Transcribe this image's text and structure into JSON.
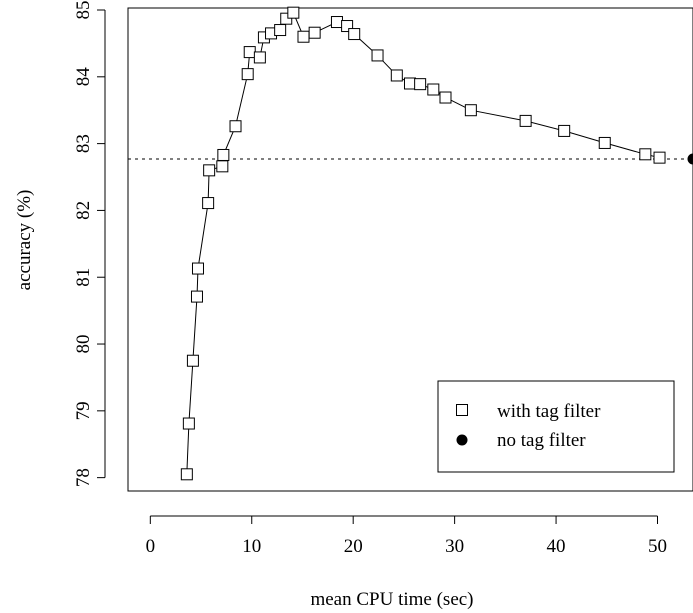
{
  "chart_data": {
    "type": "scatter",
    "xlabel": "mean CPU time (sec)",
    "ylabel": "accuracy (%)",
    "xlim": [
      -2.2,
      53.5
    ],
    "ylim": [
      77.8,
      85.03
    ],
    "x_ticks": [
      0,
      10,
      20,
      30,
      40,
      50
    ],
    "y_ticks": [
      78,
      79,
      80,
      81,
      82,
      83,
      84,
      85
    ],
    "legend_position": "bottom-right",
    "grid": false,
    "series": [
      {
        "name": "with tag filter",
        "marker": "open-square",
        "line": true,
        "points": [
          [
            3.6,
            78.05
          ],
          [
            3.8,
            78.81
          ],
          [
            4.2,
            79.75
          ],
          [
            4.6,
            80.71
          ],
          [
            4.7,
            81.13
          ],
          [
            5.7,
            82.11
          ],
          [
            5.8,
            82.6
          ],
          [
            7.1,
            82.66
          ],
          [
            7.2,
            82.83
          ],
          [
            8.4,
            83.26
          ],
          [
            9.6,
            84.04
          ],
          [
            9.8,
            84.37
          ],
          [
            10.8,
            84.29
          ],
          [
            11.2,
            84.59
          ],
          [
            11.9,
            84.65
          ],
          [
            12.8,
            84.7
          ],
          [
            13.4,
            84.87
          ],
          [
            14.1,
            84.96
          ],
          [
            15.1,
            84.6
          ],
          [
            16.2,
            84.66
          ],
          [
            18.4,
            84.82
          ],
          [
            19.4,
            84.76
          ],
          [
            20.1,
            84.64
          ],
          [
            22.4,
            84.32
          ],
          [
            24.3,
            84.02
          ],
          [
            25.6,
            83.9
          ],
          [
            26.6,
            83.89
          ],
          [
            27.9,
            83.81
          ],
          [
            29.1,
            83.69
          ],
          [
            31.6,
            83.5
          ],
          [
            37.0,
            83.34
          ],
          [
            40.8,
            83.19
          ],
          [
            44.8,
            83.01
          ],
          [
            48.8,
            82.84
          ],
          [
            50.2,
            82.79
          ]
        ]
      },
      {
        "name": "no tag filter",
        "marker": "filled-circle",
        "line": false,
        "points": [
          [
            53.5,
            82.77
          ]
        ]
      }
    ],
    "reference_lines": {
      "x": 53.5,
      "y": 82.77
    }
  }
}
